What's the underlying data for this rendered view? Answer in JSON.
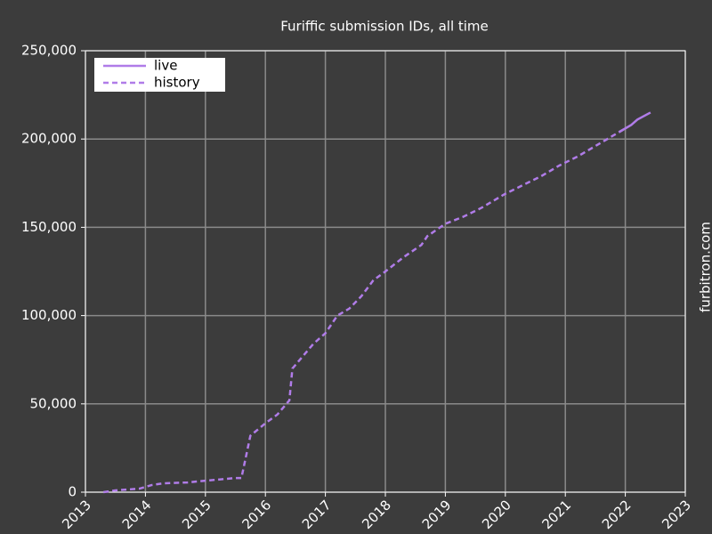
{
  "chart_data": {
    "type": "line",
    "title": "Furiffic submission IDs, all time",
    "watermark": "furbitron.com",
    "series": [
      {
        "name": "live",
        "color": "#b07ce8",
        "linestyle": "solid",
        "x": [
          2021.9,
          2022.1,
          2022.2,
          2022.42
        ],
        "values": [
          204000,
          208000,
          211000,
          215000
        ]
      },
      {
        "name": "history",
        "color": "#b07ce8",
        "linestyle": "dashed",
        "x": [
          2013.3,
          2013.5,
          2013.9,
          2014.1,
          2014.3,
          2014.7,
          2015.0,
          2015.5,
          2015.6,
          2015.75,
          2016.0,
          2016.2,
          2016.4,
          2016.45,
          2016.6,
          2016.8,
          2017.0,
          2017.2,
          2017.4,
          2017.6,
          2017.8,
          2018.0,
          2018.3,
          2018.6,
          2018.7,
          2019.0,
          2019.3,
          2019.6,
          2019.8,
          2020.0,
          2020.3,
          2020.6,
          2020.9,
          2021.2,
          2021.5,
          2021.8,
          2022.0
        ],
        "values": [
          0,
          1000,
          2000,
          4000,
          5000,
          5500,
          6500,
          8000,
          8000,
          32000,
          39000,
          44000,
          52000,
          70000,
          76000,
          84000,
          90000,
          100000,
          104000,
          111000,
          120000,
          125000,
          133000,
          140000,
          145000,
          152000,
          156000,
          161000,
          165000,
          169000,
          174000,
          179000,
          185000,
          190000,
          196000,
          202000,
          206000
        ]
      }
    ],
    "xlim": [
      2013,
      2023
    ],
    "xticks": [
      2013,
      2014,
      2015,
      2016,
      2017,
      2018,
      2019,
      2020,
      2021,
      2022,
      2023
    ],
    "ylim": [
      0,
      250000
    ],
    "yticks": [
      0,
      {
        "value": 50000,
        "label": "50,000"
      },
      {
        "value": 100000,
        "label": "100,000"
      },
      {
        "value": 150000,
        "label": "150,000"
      },
      {
        "value": 200000,
        "label": "200,000"
      },
      {
        "value": 250000,
        "label": "250,000"
      }
    ],
    "grid": true,
    "legend": "upper left"
  }
}
